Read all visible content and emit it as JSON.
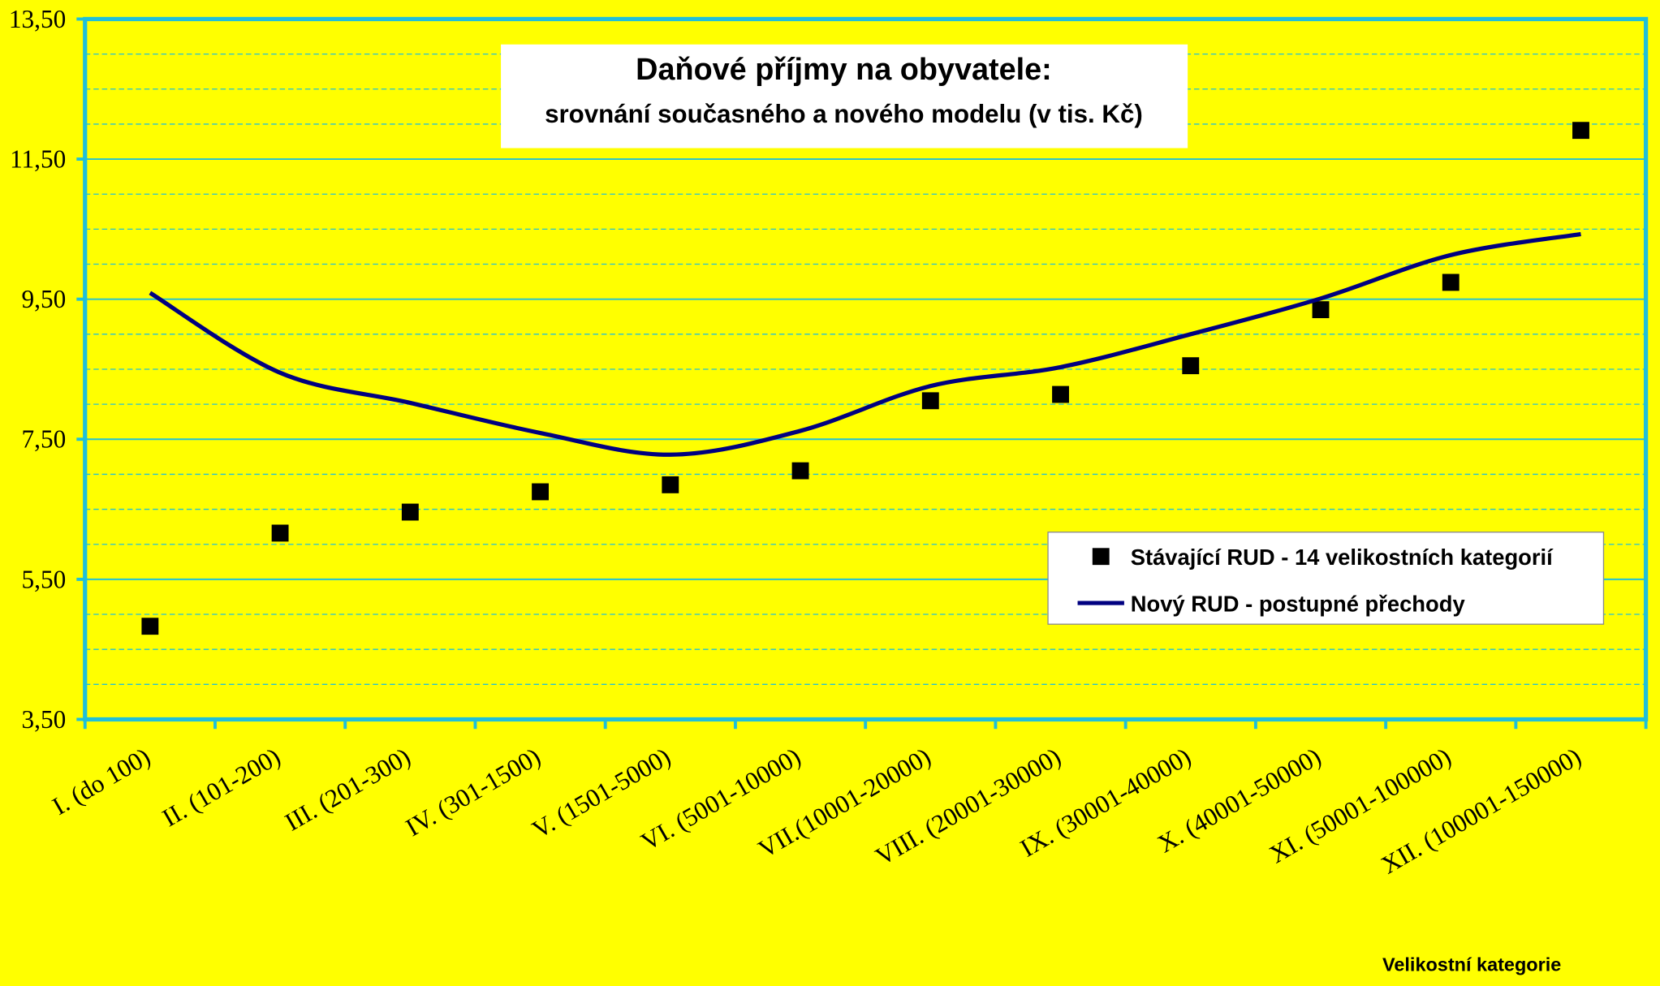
{
  "chart_data": {
    "type": "line",
    "title": "Daňové příjmy na obyvatele:",
    "subtitle": "srovnání současného a nového modelu (v tis. Kč)",
    "x_label": "Velikostní kategorie",
    "categories": [
      "I. (do 100)",
      "II. (101-200)",
      "III. (201-300)",
      "IV. (301-1500)",
      "V. (1501-5000)",
      "VI. (5001-10000)",
      "VII.(10001-20000)",
      "VIII. (20001-30000)",
      "IX. (30001-40000)",
      "X. (40001-50000)",
      "XI. (50001-100000)",
      "XII. (100001-150000)"
    ],
    "series": [
      {
        "name": "Stávající RUD - 14 velikostních kategorií",
        "color": "#000000",
        "marker": "square",
        "values": [
          4.83,
          6.16,
          6.46,
          6.75,
          6.85,
          7.05,
          8.05,
          8.14,
          8.55,
          9.35,
          9.74,
          11.91
        ]
      },
      {
        "name": "Nový RUD - postupné přechody",
        "color": "#000080",
        "marker": "line",
        "values": [
          9.59,
          8.45,
          8.02,
          7.59,
          7.28,
          7.62,
          8.26,
          8.53,
          9.0,
          9.51,
          10.13,
          10.43
        ]
      }
    ],
    "ylim": [
      3.5,
      13.5
    ],
    "yticks": [
      {
        "value": 3.5,
        "label": "3,50"
      },
      {
        "value": 5.5,
        "label": "5,50"
      },
      {
        "value": 7.5,
        "label": "7,50"
      },
      {
        "value": 9.5,
        "label": "9,50"
      },
      {
        "value": 11.5,
        "label": "11,50"
      },
      {
        "value": 13.5,
        "label": "13,50"
      }
    ],
    "grid": true
  }
}
